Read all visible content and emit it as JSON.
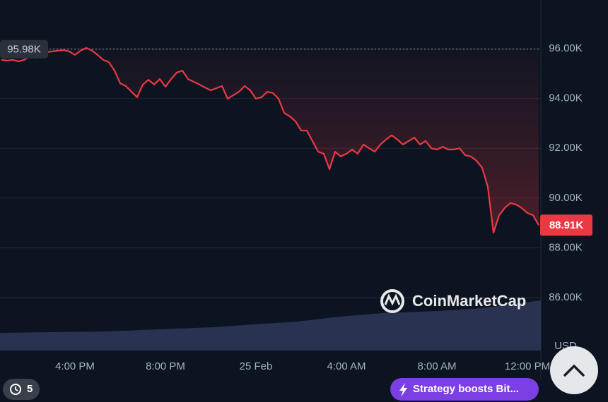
{
  "chart_data": {
    "type": "line",
    "color": "#ea3943",
    "grid": true,
    "categories": [
      null,
      null,
      null,
      null,
      null,
      null,
      null,
      null,
      null,
      null,
      null,
      null,
      null,
      "4:00 PM",
      null,
      null,
      null,
      null,
      null,
      null,
      null,
      null,
      null,
      null,
      null,
      null,
      null,
      null,
      null,
      "8:00 PM",
      null,
      null,
      null,
      null,
      null,
      null,
      null,
      null,
      null,
      null,
      null,
      null,
      null,
      null,
      null,
      "25 Feb",
      null,
      null,
      null,
      null,
      null,
      null,
      null,
      null,
      null,
      null,
      null,
      null,
      null,
      null,
      null,
      "4:00 AM",
      null,
      null,
      null,
      null,
      null,
      null,
      null,
      null,
      null,
      null,
      null,
      null,
      null,
      null,
      null,
      "8:00 AM",
      null,
      null,
      null,
      null,
      null,
      null,
      null,
      null,
      null,
      null,
      null,
      null,
      null,
      null,
      null,
      "12:00 PM",
      null,
      null
    ],
    "values": [
      95550,
      95520,
      95550,
      95490,
      95550,
      95690,
      95630,
      95800,
      95860,
      95890,
      95920,
      95940,
      95890,
      95750,
      95920,
      96030,
      95920,
      95750,
      95550,
      95460,
      95120,
      94610,
      94500,
      94270,
      94050,
      94560,
      94750,
      94560,
      94780,
      94470,
      94780,
      95040,
      95120,
      94780,
      94670,
      94560,
      94440,
      94330,
      94410,
      94500,
      93990,
      94130,
      94270,
      94500,
      94330,
      93990,
      94050,
      94270,
      94220,
      93990,
      93420,
      93280,
      93080,
      92710,
      92710,
      92290,
      91860,
      91780,
      91160,
      91860,
      91670,
      91780,
      91950,
      91780,
      92150,
      92000,
      91860,
      92150,
      92350,
      92520,
      92350,
      92150,
      92290,
      92430,
      92150,
      92290,
      92000,
      91950,
      92060,
      91950,
      91950,
      92000,
      91720,
      91670,
      91500,
      91210,
      90450,
      88610,
      89310,
      89600,
      89800,
      89740,
      89600,
      89400,
      89310,
      88910
    ],
    "ylim": [
      83875,
      97955
    ],
    "yticks": [
      {
        "value": 86000,
        "label": "86.00K"
      },
      {
        "value": 88000,
        "label": "88.00K"
      },
      {
        "value": 90000,
        "label": "90.00K"
      },
      {
        "value": 92000,
        "label": "92.00K"
      },
      {
        "value": 94000,
        "label": "94.00K"
      },
      {
        "value": 96000,
        "label": "96.00K"
      }
    ],
    "reference_line": {
      "value": 95980,
      "label": "95.98K"
    },
    "current_price": {
      "value": 88910,
      "label": "88.91K"
    },
    "y_axis_unit": "USD",
    "watermark": "CoinMarketCap"
  },
  "ui": {
    "history_count": 5,
    "news_pill": "Strategy boosts Bit..."
  }
}
